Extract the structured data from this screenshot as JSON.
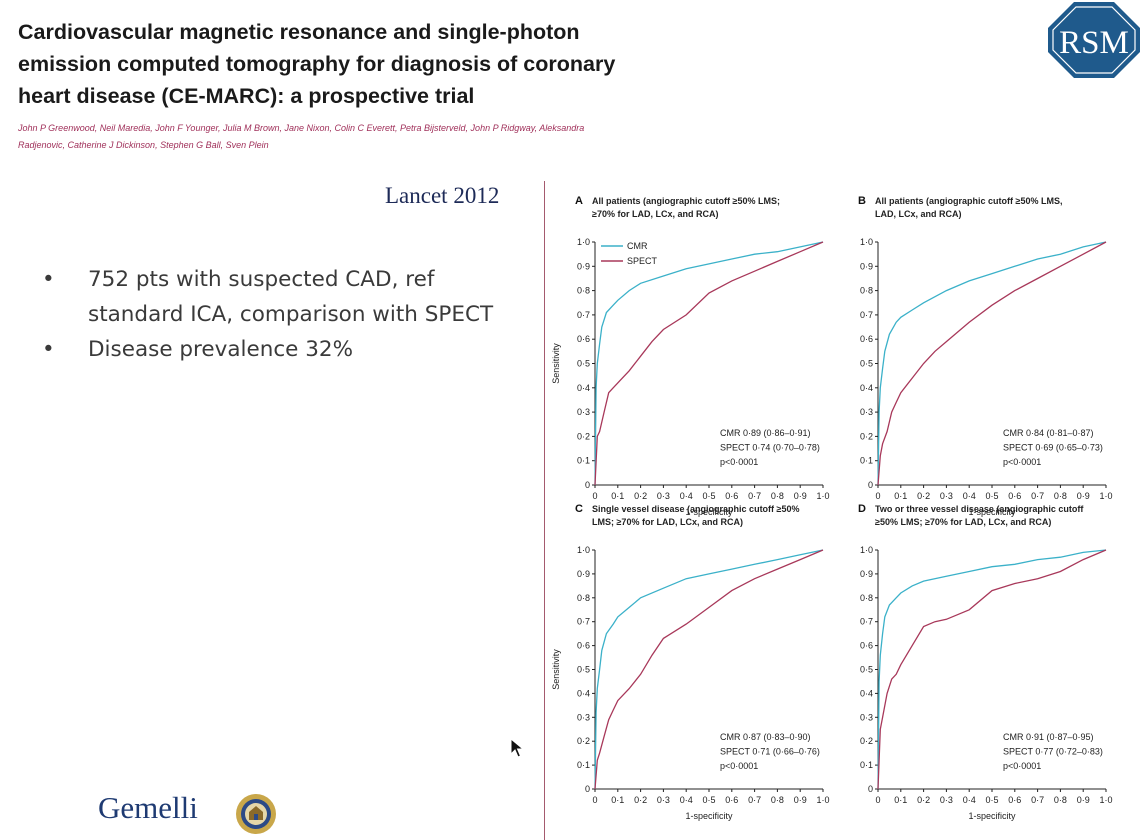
{
  "slide": {
    "title": "Cardiovascular magnetic resonance and single-photon emission computed tomography for diagnosis of coronary heart disease (CE-MARC): a prospective trial",
    "authors": "John P Greenwood, Neil Maredia, John F Younger, Julia M Brown, Jane Nixon, Colin C Everett, Petra Bijsterveld, John P Ridgway, Aleksandra Radjenovic, Catherine J Dickinson, Stephen G Ball, Sven Plein",
    "journal": "Lancet 2012",
    "bullets": [
      "752 pts with suspected CAD,    ref standard ICA, comparison with SPECT",
      "Disease prevalence 32%"
    ],
    "bullet_symbol": "•",
    "logo_text": "Gemelli",
    "rsm_logo_text": "RSM"
  },
  "colors": {
    "cmr": "#3bb1c9",
    "spect": "#a8385a",
    "title": "#1a1a1a",
    "authors": "#a0305a",
    "journal": "#1d2a57",
    "divider": "#a45a6e",
    "rsm": "#1f5a8c"
  },
  "icons": {
    "logo": "rsm-logo-icon",
    "seal": "gemelli-seal-icon",
    "cursor": "mouse-cursor-icon"
  },
  "chart_data": [
    {
      "type": "line",
      "panel": "A",
      "title_lines": [
        "All patients (angiographic cutoff ≥50% LMS;",
        "≥70% for LAD, LCx, and RCA)"
      ],
      "xlabel": "1-specificity",
      "ylabel": "Sensitivity",
      "xlim": [
        0,
        1
      ],
      "ylim": [
        0,
        1
      ],
      "tick_labels": [
        "0",
        "0·1",
        "0·2",
        "0·3",
        "0·4",
        "0·5",
        "0·6",
        "0·7",
        "0·8",
        "0·9",
        "1·0"
      ],
      "legend": {
        "placement": "top-left",
        "entries": [
          "CMR",
          "SPECT"
        ]
      },
      "annotations": [
        "CMR 0·89 (0·86–0·91)",
        "SPECT 0·74 (0·70–0·78)",
        "p<0·0001"
      ],
      "series": [
        {
          "name": "CMR",
          "x": [
            0,
            0.005,
            0.01,
            0.02,
            0.03,
            0.05,
            0.08,
            0.1,
            0.15,
            0.2,
            0.3,
            0.4,
            0.5,
            0.6,
            0.7,
            0.8,
            0.9,
            1.0
          ],
          "y": [
            0,
            0.4,
            0.5,
            0.58,
            0.65,
            0.71,
            0.74,
            0.76,
            0.8,
            0.83,
            0.86,
            0.89,
            0.91,
            0.93,
            0.95,
            0.96,
            0.98,
            1.0
          ]
        },
        {
          "name": "SPECT",
          "x": [
            0,
            0.01,
            0.02,
            0.04,
            0.06,
            0.08,
            0.1,
            0.15,
            0.2,
            0.25,
            0.3,
            0.4,
            0.5,
            0.6,
            0.7,
            0.8,
            0.9,
            1.0
          ],
          "y": [
            0,
            0.2,
            0.22,
            0.3,
            0.38,
            0.4,
            0.42,
            0.47,
            0.53,
            0.59,
            0.64,
            0.7,
            0.79,
            0.84,
            0.88,
            0.92,
            0.96,
            1.0
          ]
        }
      ]
    },
    {
      "type": "line",
      "panel": "B",
      "title_lines": [
        "All patients (angiographic cutoff ≥50% LMS,",
        "LAD, LCx, and RCA)"
      ],
      "xlabel": "1-specificity",
      "ylabel": "",
      "xlim": [
        0,
        1
      ],
      "ylim": [
        0,
        1
      ],
      "tick_labels": [
        "0",
        "0·1",
        "0·2",
        "0·3",
        "0·4",
        "0·5",
        "0·6",
        "0·7",
        "0·8",
        "0·9",
        "1·0"
      ],
      "annotations": [
        "CMR 0·84 (0·81–0·87)",
        "SPECT 0·69 (0·65–0·73)",
        "p<0·0001"
      ],
      "series": [
        {
          "name": "CMR",
          "x": [
            0,
            0.005,
            0.01,
            0.02,
            0.03,
            0.05,
            0.08,
            0.1,
            0.15,
            0.2,
            0.3,
            0.4,
            0.5,
            0.6,
            0.7,
            0.8,
            0.9,
            1.0
          ],
          "y": [
            0,
            0.3,
            0.4,
            0.48,
            0.55,
            0.62,
            0.67,
            0.69,
            0.72,
            0.75,
            0.8,
            0.84,
            0.87,
            0.9,
            0.93,
            0.95,
            0.98,
            1.0
          ]
        },
        {
          "name": "SPECT",
          "x": [
            0,
            0.01,
            0.02,
            0.04,
            0.06,
            0.08,
            0.1,
            0.15,
            0.2,
            0.25,
            0.3,
            0.4,
            0.5,
            0.6,
            0.7,
            0.8,
            0.9,
            1.0
          ],
          "y": [
            0,
            0.12,
            0.17,
            0.22,
            0.3,
            0.34,
            0.38,
            0.44,
            0.5,
            0.55,
            0.59,
            0.67,
            0.74,
            0.8,
            0.85,
            0.9,
            0.95,
            1.0
          ]
        }
      ]
    },
    {
      "type": "line",
      "panel": "C",
      "title_lines": [
        "Single vessel disease (angiographic cutoff ≥50%",
        "LMS; ≥70% for LAD, LCx, and RCA)"
      ],
      "xlabel": "1-specificity",
      "ylabel": "Sensitivity",
      "xlim": [
        0,
        1
      ],
      "ylim": [
        0,
        1
      ],
      "tick_labels": [
        "0",
        "0·1",
        "0·2",
        "0·3",
        "0·4",
        "0·5",
        "0·6",
        "0·7",
        "0·8",
        "0·9",
        "1·0"
      ],
      "annotations": [
        "CMR 0·87 (0·83–0·90)",
        "SPECT 0·71 (0·66–0·76)",
        "p<0·0001"
      ],
      "series": [
        {
          "name": "CMR",
          "x": [
            0,
            0.005,
            0.01,
            0.02,
            0.03,
            0.05,
            0.08,
            0.1,
            0.15,
            0.2,
            0.3,
            0.4,
            0.5,
            0.6,
            0.7,
            0.8,
            0.9,
            1.0
          ],
          "y": [
            0,
            0.32,
            0.42,
            0.5,
            0.58,
            0.65,
            0.69,
            0.72,
            0.76,
            0.8,
            0.84,
            0.88,
            0.9,
            0.92,
            0.94,
            0.96,
            0.98,
            1.0
          ]
        },
        {
          "name": "SPECT",
          "x": [
            0,
            0.01,
            0.02,
            0.04,
            0.06,
            0.08,
            0.1,
            0.15,
            0.2,
            0.25,
            0.3,
            0.4,
            0.5,
            0.6,
            0.7,
            0.8,
            0.9,
            1.0
          ],
          "y": [
            0,
            0.12,
            0.15,
            0.22,
            0.29,
            0.33,
            0.37,
            0.42,
            0.48,
            0.56,
            0.63,
            0.69,
            0.76,
            0.83,
            0.88,
            0.92,
            0.96,
            1.0
          ]
        }
      ]
    },
    {
      "type": "line",
      "panel": "D",
      "title_lines": [
        "Two or three vessel disease (angiographic cutoff",
        "≥50% LMS; ≥70% for LAD, LCx, and RCA)"
      ],
      "xlabel": "1-specificity",
      "ylabel": "",
      "xlim": [
        0,
        1
      ],
      "ylim": [
        0,
        1
      ],
      "tick_labels": [
        "0",
        "0·1",
        "0·2",
        "0·3",
        "0·4",
        "0·5",
        "0·6",
        "0·7",
        "0·8",
        "0·9",
        "1·0"
      ],
      "annotations": [
        "CMR 0·91 (0·87–0·95)",
        "SPECT 0·77 (0·72–0·83)",
        "p<0·0001"
      ],
      "series": [
        {
          "name": "CMR",
          "x": [
            0,
            0.005,
            0.01,
            0.02,
            0.03,
            0.05,
            0.08,
            0.1,
            0.15,
            0.2,
            0.3,
            0.4,
            0.5,
            0.6,
            0.7,
            0.8,
            0.9,
            1.0
          ],
          "y": [
            0,
            0.45,
            0.56,
            0.65,
            0.72,
            0.77,
            0.8,
            0.82,
            0.85,
            0.87,
            0.89,
            0.91,
            0.93,
            0.94,
            0.96,
            0.97,
            0.99,
            1.0
          ]
        },
        {
          "name": "SPECT",
          "x": [
            0,
            0.01,
            0.02,
            0.04,
            0.06,
            0.08,
            0.1,
            0.15,
            0.2,
            0.25,
            0.3,
            0.4,
            0.5,
            0.6,
            0.7,
            0.8,
            0.9,
            1.0
          ],
          "y": [
            0,
            0.25,
            0.3,
            0.4,
            0.46,
            0.48,
            0.52,
            0.6,
            0.68,
            0.7,
            0.71,
            0.75,
            0.83,
            0.86,
            0.88,
            0.91,
            0.96,
            1.0
          ]
        }
      ]
    }
  ]
}
